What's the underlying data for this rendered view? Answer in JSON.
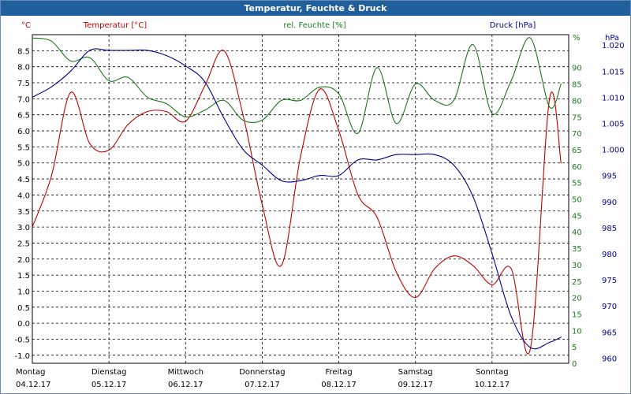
{
  "window_title": "Temperatur, Feuchte & Druck",
  "chart_data": {
    "type": "line",
    "title": "Temperatur, Feuchte & Druck",
    "x": [
      0,
      0.25,
      0.5,
      0.75,
      1,
      1.25,
      1.5,
      1.75,
      2,
      2.25,
      2.5,
      2.75,
      3,
      3.25,
      3.5,
      3.75,
      4,
      4.25,
      4.5,
      4.75,
      5,
      5.25,
      5.5,
      5.75,
      6,
      6.25,
      6.5,
      6.75,
      6.9
    ],
    "x_range": [
      0,
      7
    ],
    "x_ticks": [
      {
        "day": "Montag",
        "date": "04.12.17",
        "pos": 0
      },
      {
        "day": "Dienstag",
        "date": "05.12.17",
        "pos": 1
      },
      {
        "day": "Mittwoch",
        "date": "06.12.17",
        "pos": 2
      },
      {
        "day": "Donnerstag",
        "date": "07.12.17",
        "pos": 3
      },
      {
        "day": "Freitag",
        "date": "08.12.17",
        "pos": 4
      },
      {
        "day": "Samstag",
        "date": "09.12.17",
        "pos": 5
      },
      {
        "day": "Sonntag",
        "date": "10.12.17",
        "pos": 6
      }
    ],
    "axes": {
      "temperature": {
        "label": "Temperatur [°C]",
        "unit": "°C",
        "min": -1.25,
        "max": 9.0,
        "ticks": [
          "8.5",
          "8.0",
          "7.5",
          "7.0",
          "6.5",
          "6.0",
          "5.5",
          "5.0",
          "4.5",
          "4.0",
          "3.5",
          "3.0",
          "2.5",
          "2.0",
          "1.5",
          "1.0",
          "0.5",
          "0.0",
          "-0.5",
          "-1.0"
        ]
      },
      "humidity": {
        "label": "rel. Feuchte [%]",
        "unit": "%",
        "min": 0,
        "max": 100,
        "ticks": [
          "90",
          "85",
          "80",
          "75",
          "70",
          "65",
          "60",
          "55",
          "50",
          "45",
          "40",
          "35",
          "30",
          "25",
          "20",
          "15",
          "10",
          "5",
          "0"
        ]
      },
      "pressure": {
        "label": "Druck [hPa]",
        "unit": "hPa",
        "min": 959,
        "max": 1022,
        "ticks": [
          "1.020",
          "1.015",
          "1.010",
          "1.005",
          "1.000",
          "995",
          "990",
          "985",
          "980",
          "975",
          "970",
          "965",
          "960"
        ]
      }
    },
    "series": [
      {
        "name": "Temperatur",
        "axis": "temperature",
        "color": "#c00000",
        "values": [
          3.0,
          4.6,
          7.2,
          5.6,
          5.4,
          6.2,
          6.6,
          6.6,
          6.3,
          7.4,
          8.5,
          6.5,
          3.7,
          1.8,
          5.2,
          7.3,
          6.0,
          4.0,
          3.3,
          1.6,
          0.8,
          1.7,
          2.1,
          1.8,
          1.2,
          1.7,
          -0.8,
          7.0,
          5.0
        ]
      },
      {
        "name": "rel. Feuchte",
        "axis": "humidity",
        "color": "#1a7a1a",
        "values": [
          99,
          98,
          92,
          93,
          86,
          87,
          81,
          79,
          75,
          77,
          80,
          74,
          74,
          80,
          80,
          84,
          82,
          70,
          90,
          73,
          85,
          80,
          80,
          97,
          76,
          86,
          99,
          78,
          85
        ]
      },
      {
        "name": "Druck",
        "axis": "pressure",
        "color": "#00008b",
        "values": [
          1010,
          1012,
          1015,
          1019,
          1019,
          1019,
          1019,
          1018,
          1016,
          1013,
          1006,
          1000,
          997,
          994,
          994,
          995,
          995,
          998,
          998,
          999,
          999,
          999,
          997,
          991,
          980,
          968,
          962,
          963,
          964
        ]
      }
    ]
  }
}
